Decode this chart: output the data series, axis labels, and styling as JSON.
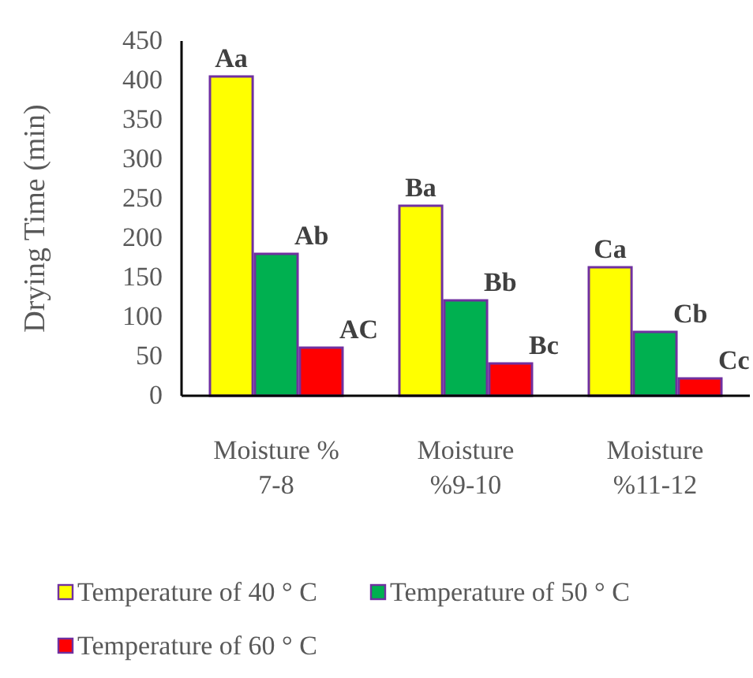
{
  "chart_data": {
    "type": "bar",
    "ylabel": "Drying Time (min)",
    "categories": [
      "Moisture %\n7-8",
      "Moisture\n%9-10",
      "Moisture\n%11-12"
    ],
    "series": [
      {
        "name": "Temperature of 40 ° C",
        "color": "#ffff00",
        "values": [
          405,
          241,
          163
        ]
      },
      {
        "name": "Temperature of 50 ° C",
        "color": "#00b050",
        "values": [
          180,
          121,
          81
        ]
      },
      {
        "name": "Temperature of 60 ° C",
        "color": "#ff0000",
        "values": [
          61,
          41,
          22
        ]
      }
    ],
    "ylim": [
      0,
      450
    ],
    "yticks": [
      0,
      50,
      100,
      150,
      200,
      250,
      300,
      350,
      400,
      450
    ],
    "grid": false,
    "legend": "bottom",
    "annotations": [
      "Aa",
      "Ab",
      "AC",
      "Ba",
      "Bb",
      "Bc",
      "Ca",
      "Cb",
      "Cc"
    ]
  }
}
